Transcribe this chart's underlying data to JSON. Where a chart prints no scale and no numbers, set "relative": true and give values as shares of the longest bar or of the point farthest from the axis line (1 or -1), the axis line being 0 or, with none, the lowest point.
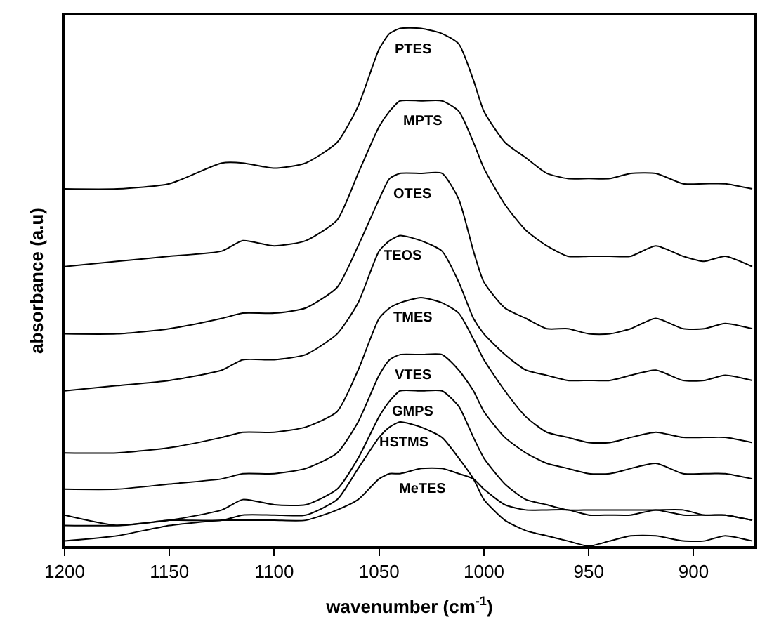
{
  "chart_data": {
    "type": "line",
    "relative": true,
    "xlabel": "wavenumber (cm$^{-1}$)",
    "ylabel": "absorbance (a.u)",
    "x": [
      1200,
      1175,
      1150,
      1125,
      1115,
      1100,
      1085,
      1070,
      1060,
      1050,
      1045,
      1040,
      1030,
      1020,
      1012,
      1005,
      1000,
      990,
      980,
      970,
      960,
      950,
      940,
      930,
      918,
      905,
      895,
      885,
      872
    ],
    "xlim": [
      1200,
      871
    ],
    "xticks": [
      1200,
      1150,
      1100,
      1050,
      1000,
      950,
      900
    ],
    "tick_labels": "x",
    "grid": false,
    "legend": false,
    "marker": "none",
    "line_style": "solid",
    "series": [
      {
        "name": "PTES",
        "color": "#000000",
        "values": [
          0.69,
          0.69,
          0.7,
          0.74,
          0.74,
          0.73,
          0.74,
          0.78,
          0.85,
          0.96,
          0.99,
          1.0,
          1.0,
          0.99,
          0.97,
          0.9,
          0.84,
          0.78,
          0.75,
          0.72,
          0.71,
          0.71,
          0.71,
          0.72,
          0.72,
          0.7,
          0.7,
          0.7,
          0.69
        ]
      },
      {
        "name": "MPTS",
        "color": "#000000",
        "values": [
          0.54,
          0.55,
          0.56,
          0.57,
          0.59,
          0.58,
          0.59,
          0.63,
          0.72,
          0.81,
          0.84,
          0.86,
          0.86,
          0.86,
          0.84,
          0.78,
          0.73,
          0.66,
          0.61,
          0.58,
          0.56,
          0.56,
          0.56,
          0.56,
          0.58,
          0.56,
          0.55,
          0.56,
          0.54
        ]
      },
      {
        "name": "OTES",
        "color": "#000000",
        "values": [
          0.41,
          0.41,
          0.42,
          0.44,
          0.45,
          0.45,
          0.46,
          0.5,
          0.58,
          0.67,
          0.71,
          0.72,
          0.72,
          0.72,
          0.67,
          0.57,
          0.51,
          0.46,
          0.44,
          0.42,
          0.42,
          0.41,
          0.41,
          0.42,
          0.44,
          0.42,
          0.42,
          0.43,
          0.42
        ]
      },
      {
        "name": "TEOS",
        "color": "#000000",
        "values": [
          0.3,
          0.31,
          0.32,
          0.34,
          0.36,
          0.36,
          0.37,
          0.41,
          0.47,
          0.57,
          0.59,
          0.6,
          0.59,
          0.57,
          0.51,
          0.44,
          0.41,
          0.37,
          0.34,
          0.33,
          0.32,
          0.32,
          0.32,
          0.33,
          0.34,
          0.32,
          0.32,
          0.33,
          0.32
        ]
      },
      {
        "name": "TMES",
        "color": "#000000",
        "values": [
          0.18,
          0.18,
          0.19,
          0.21,
          0.22,
          0.22,
          0.23,
          0.26,
          0.34,
          0.44,
          0.46,
          0.47,
          0.48,
          0.47,
          0.45,
          0.4,
          0.36,
          0.3,
          0.25,
          0.22,
          0.21,
          0.2,
          0.2,
          0.21,
          0.22,
          0.21,
          0.21,
          0.21,
          0.2
        ]
      },
      {
        "name": "VTES",
        "color": "#000000",
        "values": [
          0.11,
          0.11,
          0.12,
          0.13,
          0.14,
          0.14,
          0.15,
          0.18,
          0.24,
          0.33,
          0.36,
          0.37,
          0.37,
          0.37,
          0.34,
          0.3,
          0.26,
          0.21,
          0.18,
          0.16,
          0.15,
          0.14,
          0.14,
          0.15,
          0.16,
          0.14,
          0.14,
          0.14,
          0.13
        ]
      },
      {
        "name": "GMPS",
        "color": "#000000",
        "values": [
          0.04,
          0.04,
          0.05,
          0.07,
          0.09,
          0.08,
          0.08,
          0.11,
          0.17,
          0.25,
          0.28,
          0.3,
          0.3,
          0.3,
          0.27,
          0.21,
          0.17,
          0.12,
          0.09,
          0.08,
          0.07,
          0.07,
          0.07,
          0.07,
          0.07,
          0.07,
          0.06,
          0.06,
          0.05
        ]
      },
      {
        "name": "HSTMS",
        "color": "#000000",
        "values": [
          0.06,
          0.04,
          0.05,
          0.05,
          0.06,
          0.06,
          0.06,
          0.09,
          0.15,
          0.21,
          0.23,
          0.24,
          0.23,
          0.21,
          0.17,
          0.13,
          0.09,
          0.05,
          0.03,
          0.02,
          0.01,
          0.0,
          0.01,
          0.02,
          0.02,
          0.01,
          0.01,
          0.02,
          0.01
        ]
      },
      {
        "name": "MeTES",
        "color": "#000000",
        "values": [
          0.01,
          0.02,
          0.04,
          0.05,
          0.05,
          0.05,
          0.05,
          0.07,
          0.09,
          0.13,
          0.14,
          0.14,
          0.15,
          0.15,
          0.14,
          0.13,
          0.11,
          0.08,
          0.07,
          0.07,
          0.07,
          0.06,
          0.06,
          0.06,
          0.07,
          0.06,
          0.06,
          0.06,
          0.05
        ]
      }
    ]
  }
}
